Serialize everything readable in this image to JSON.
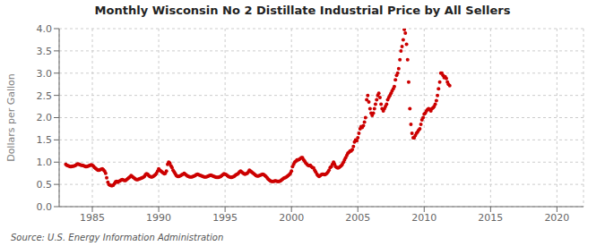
{
  "chart_data": {
    "type": "scatter",
    "title": "Monthly Wisconsin No 2 Distillate Industrial Price by All Sellers",
    "y_label": "Dollars per Gallon",
    "annotations": [
      "Source: U.S. Energy Information Administration"
    ],
    "color": "#CC0000",
    "grid": true,
    "xlim": [
      1982.5,
      2022
    ],
    "ylim": [
      0.0,
      4.0
    ],
    "xticks": [
      1985,
      1990,
      1995,
      2000,
      2005,
      2010,
      2015,
      2020
    ],
    "yticks": [
      {
        "value": 0.0,
        "label": "0.0"
      },
      0.5,
      {
        "value": 1.0,
        "label": "1.0"
      },
      1.5,
      {
        "value": 2.0,
        "label": "2.0"
      },
      2.5,
      {
        "value": 3.0,
        "label": "3.0"
      },
      3.5,
      {
        "value": 4.0,
        "label": "4.0"
      }
    ],
    "x": [
      1983.0,
      1983.08,
      1983.17,
      1983.25,
      1983.33,
      1983.42,
      1983.5,
      1983.58,
      1983.67,
      1983.75,
      1983.83,
      1983.92,
      1984.0,
      1984.08,
      1984.17,
      1984.25,
      1984.33,
      1984.42,
      1984.5,
      1984.58,
      1984.67,
      1984.75,
      1984.83,
      1984.92,
      1985.0,
      1985.08,
      1985.17,
      1985.25,
      1985.33,
      1985.42,
      1985.5,
      1985.58,
      1985.67,
      1985.75,
      1985.83,
      1985.92,
      1986.0,
      1986.08,
      1986.17,
      1986.25,
      1986.33,
      1986.42,
      1986.5,
      1986.58,
      1986.67,
      1986.75,
      1986.83,
      1986.92,
      1987.0,
      1987.08,
      1987.17,
      1987.25,
      1987.33,
      1987.42,
      1987.5,
      1987.58,
      1987.67,
      1987.75,
      1987.83,
      1987.92,
      1988.0,
      1988.08,
      1988.17,
      1988.25,
      1988.33,
      1988.42,
      1988.5,
      1988.58,
      1988.67,
      1988.75,
      1988.83,
      1988.92,
      1989.0,
      1989.08,
      1989.17,
      1989.25,
      1989.33,
      1989.42,
      1989.5,
      1989.58,
      1989.67,
      1989.75,
      1989.83,
      1989.92,
      1990.0,
      1990.08,
      1990.17,
      1990.25,
      1990.33,
      1990.42,
      1990.5,
      1990.58,
      1990.67,
      1990.75,
      1990.83,
      1990.92,
      1991.0,
      1991.08,
      1991.17,
      1991.25,
      1991.33,
      1991.42,
      1991.5,
      1991.58,
      1991.67,
      1991.75,
      1991.83,
      1991.92,
      1992.0,
      1992.08,
      1992.17,
      1992.25,
      1992.33,
      1992.42,
      1992.5,
      1992.58,
      1992.67,
      1992.75,
      1992.83,
      1992.92,
      1993.0,
      1993.08,
      1993.17,
      1993.25,
      1993.33,
      1993.42,
      1993.5,
      1993.58,
      1993.67,
      1993.75,
      1993.83,
      1993.92,
      1994.0,
      1994.08,
      1994.17,
      1994.25,
      1994.33,
      1994.42,
      1994.5,
      1994.58,
      1994.67,
      1994.75,
      1994.83,
      1994.92,
      1995.0,
      1995.08,
      1995.17,
      1995.25,
      1995.33,
      1995.42,
      1995.5,
      1995.58,
      1995.67,
      1995.75,
      1995.83,
      1995.92,
      1996.0,
      1996.08,
      1996.17,
      1996.25,
      1996.33,
      1996.42,
      1996.5,
      1996.58,
      1996.67,
      1996.75,
      1996.83,
      1996.92,
      1997.0,
      1997.08,
      1997.17,
      1997.25,
      1997.33,
      1997.42,
      1997.5,
      1997.58,
      1997.67,
      1997.75,
      1997.83,
      1997.92,
      1998.0,
      1998.08,
      1998.17,
      1998.25,
      1998.33,
      1998.42,
      1998.5,
      1998.58,
      1998.67,
      1998.75,
      1998.83,
      1998.92,
      1999.0,
      1999.08,
      1999.17,
      1999.25,
      1999.33,
      1999.42,
      1999.5,
      1999.58,
      1999.67,
      1999.75,
      1999.83,
      1999.92,
      2000.0,
      2000.08,
      2000.17,
      2000.25,
      2000.33,
      2000.42,
      2000.5,
      2000.58,
      2000.67,
      2000.75,
      2000.83,
      2000.92,
      2001.0,
      2001.08,
      2001.17,
      2001.25,
      2001.33,
      2001.42,
      2001.5,
      2001.58,
      2001.67,
      2001.75,
      2001.83,
      2001.92,
      2002.0,
      2002.08,
      2002.17,
      2002.25,
      2002.33,
      2002.42,
      2002.5,
      2002.58,
      2002.67,
      2002.75,
      2002.83,
      2002.92,
      2003.0,
      2003.08,
      2003.17,
      2003.25,
      2003.33,
      2003.42,
      2003.5,
      2003.58,
      2003.67,
      2003.75,
      2003.83,
      2003.92,
      2004.0,
      2004.08,
      2004.17,
      2004.25,
      2004.33,
      2004.42,
      2004.5,
      2004.58,
      2004.67,
      2004.75,
      2004.83,
      2004.92,
      2005.0,
      2005.08,
      2005.17,
      2005.25,
      2005.33,
      2005.42,
      2005.5,
      2005.58,
      2005.67,
      2005.75,
      2005.83,
      2005.92,
      2006.0,
      2006.08,
      2006.17,
      2006.25,
      2006.33,
      2006.42,
      2006.5,
      2006.58,
      2006.67,
      2006.75,
      2006.83,
      2006.92,
      2007.0,
      2007.08,
      2007.17,
      2007.25,
      2007.33,
      2007.42,
      2007.5,
      2007.58,
      2007.67,
      2007.75,
      2007.83,
      2007.92,
      2008.0,
      2008.08,
      2008.17,
      2008.25,
      2008.33,
      2008.42,
      2008.5,
      2008.58,
      2008.67,
      2008.75,
      2008.83,
      2008.92,
      2009.0,
      2009.08,
      2009.17,
      2009.25,
      2009.33,
      2009.42,
      2009.5,
      2009.58,
      2009.67,
      2009.75,
      2009.83,
      2009.92,
      2010.0,
      2010.08,
      2010.17,
      2010.25,
      2010.33,
      2010.42,
      2010.5,
      2010.58,
      2010.67,
      2010.75,
      2010.83,
      2010.92,
      2011.0,
      2011.08,
      2011.17,
      2011.25,
      2011.33,
      2011.42,
      2011.5,
      2011.58,
      2011.67,
      2011.75,
      2011.83,
      2011.92
    ],
    "values": [
      0.95,
      0.93,
      0.92,
      0.91,
      0.9,
      0.9,
      0.91,
      0.91,
      0.92,
      0.93,
      0.95,
      0.96,
      0.95,
      0.94,
      0.93,
      0.93,
      0.92,
      0.91,
      0.9,
      0.9,
      0.91,
      0.92,
      0.93,
      0.94,
      0.93,
      0.91,
      0.88,
      0.86,
      0.84,
      0.82,
      0.82,
      0.83,
      0.84,
      0.85,
      0.83,
      0.8,
      0.75,
      0.65,
      0.55,
      0.5,
      0.48,
      0.47,
      0.47,
      0.48,
      0.52,
      0.56,
      0.57,
      0.55,
      0.57,
      0.58,
      0.6,
      0.61,
      0.6,
      0.59,
      0.59,
      0.61,
      0.63,
      0.65,
      0.67,
      0.7,
      0.68,
      0.66,
      0.64,
      0.62,
      0.61,
      0.61,
      0.62,
      0.63,
      0.64,
      0.65,
      0.66,
      0.68,
      0.72,
      0.74,
      0.73,
      0.7,
      0.68,
      0.67,
      0.67,
      0.68,
      0.7,
      0.72,
      0.75,
      0.8,
      0.85,
      0.82,
      0.8,
      0.78,
      0.76,
      0.74,
      0.75,
      0.8,
      0.95,
      1.0,
      0.98,
      0.92,
      0.88,
      0.82,
      0.78,
      0.74,
      0.7,
      0.68,
      0.68,
      0.69,
      0.7,
      0.72,
      0.73,
      0.75,
      0.73,
      0.71,
      0.69,
      0.68,
      0.67,
      0.67,
      0.67,
      0.68,
      0.69,
      0.7,
      0.72,
      0.73,
      0.72,
      0.71,
      0.7,
      0.69,
      0.68,
      0.67,
      0.67,
      0.67,
      0.68,
      0.69,
      0.7,
      0.71,
      0.7,
      0.69,
      0.68,
      0.67,
      0.66,
      0.66,
      0.66,
      0.67,
      0.68,
      0.7,
      0.72,
      0.74,
      0.73,
      0.72,
      0.7,
      0.68,
      0.67,
      0.66,
      0.66,
      0.67,
      0.68,
      0.7,
      0.72,
      0.73,
      0.75,
      0.78,
      0.8,
      0.78,
      0.76,
      0.74,
      0.73,
      0.74,
      0.75,
      0.78,
      0.82,
      0.8,
      0.78,
      0.76,
      0.74,
      0.72,
      0.7,
      0.69,
      0.69,
      0.7,
      0.71,
      0.72,
      0.73,
      0.72,
      0.7,
      0.68,
      0.65,
      0.62,
      0.6,
      0.58,
      0.57,
      0.57,
      0.57,
      0.58,
      0.58,
      0.57,
      0.57,
      0.57,
      0.58,
      0.6,
      0.62,
      0.64,
      0.65,
      0.66,
      0.68,
      0.7,
      0.72,
      0.75,
      0.8,
      0.9,
      0.95,
      1.0,
      1.02,
      1.05,
      1.05,
      1.06,
      1.08,
      1.1,
      1.1,
      1.05,
      1.02,
      0.98,
      0.95,
      0.93,
      0.92,
      0.93,
      0.9,
      0.88,
      0.87,
      0.82,
      0.78,
      0.73,
      0.7,
      0.68,
      0.7,
      0.72,
      0.73,
      0.73,
      0.72,
      0.73,
      0.75,
      0.78,
      0.82,
      0.88,
      0.9,
      0.95,
      1.0,
      0.95,
      0.9,
      0.88,
      0.87,
      0.88,
      0.9,
      0.92,
      0.95,
      1.0,
      1.05,
      1.1,
      1.15,
      1.2,
      1.22,
      1.25,
      1.25,
      1.28,
      1.35,
      1.45,
      1.5,
      1.48,
      1.55,
      1.65,
      1.75,
      1.8,
      1.78,
      1.82,
      1.9,
      2.0,
      2.4,
      2.5,
      2.35,
      2.2,
      2.1,
      2.05,
      2.1,
      2.2,
      2.3,
      2.4,
      2.5,
      2.55,
      2.45,
      2.3,
      2.2,
      2.15,
      2.2,
      2.25,
      2.3,
      2.4,
      2.45,
      2.5,
      2.55,
      2.6,
      2.65,
      2.7,
      2.85,
      2.95,
      3.0,
      3.1,
      3.3,
      3.5,
      3.6,
      3.75,
      3.98,
      3.9,
      3.65,
      3.3,
      2.8,
      2.2,
      1.85,
      1.65,
      1.55,
      1.55,
      1.6,
      1.65,
      1.68,
      1.72,
      1.75,
      1.85,
      1.95,
      2.0,
      2.08,
      2.1,
      2.15,
      2.18,
      2.2,
      2.18,
      2.15,
      2.2,
      2.22,
      2.25,
      2.3,
      2.38,
      2.5,
      2.65,
      2.8,
      3.0,
      3.0,
      2.95,
      2.9,
      2.92,
      2.88,
      2.8,
      2.75,
      2.72
    ]
  }
}
